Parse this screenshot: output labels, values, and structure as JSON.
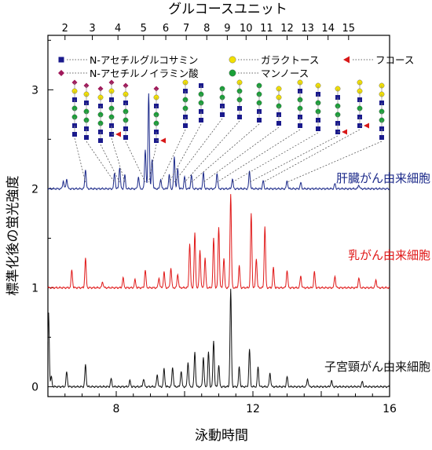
{
  "chart_data": {
    "type": "line",
    "title": "",
    "xlabel": "泳動時間",
    "ylabel": "標準化後の蛍光強度",
    "top_axis_label": "グルコースユニット",
    "xlim": [
      6,
      16
    ],
    "ylim": [
      -0.1,
      3.55
    ],
    "x_ticks": [
      "8",
      "12",
      "16"
    ],
    "y_ticks": [
      "0",
      "1",
      "2",
      "3"
    ],
    "top_ticks": [
      "2",
      "3",
      "4",
      "5",
      "6",
      "7",
      "8",
      "9",
      "10",
      "11",
      "12",
      "13",
      "14",
      "15"
    ],
    "top_tick_positions": [
      6.5,
      7.3,
      8.05,
      8.8,
      9.45,
      10.05,
      10.65,
      11.25,
      11.8,
      12.4,
      13.0,
      13.6,
      14.2,
      14.8
    ],
    "legend": [
      {
        "label": "N-アセチルグルコサミン",
        "symbol": "square",
        "color": "#1a1a8c"
      },
      {
        "label": "N-アセチルノイラミン酸",
        "symbol": "diamond",
        "color": "#a0185a"
      },
      {
        "label": "ガラクトース",
        "symbol": "circle",
        "color": "#f2e000"
      },
      {
        "label": "マンノース",
        "symbol": "circle",
        "color": "#1aa038"
      },
      {
        "label": "フコース",
        "symbol": "triangle",
        "color": "#d81818"
      }
    ],
    "series": [
      {
        "name": "肝臓がん由来細胞",
        "color": "#1c2a8a",
        "baseline": 2.0,
        "peaks": [
          [
            6.45,
            0.08
          ],
          [
            6.55,
            0.1
          ],
          [
            7.1,
            0.2
          ],
          [
            7.95,
            0.16
          ],
          [
            8.1,
            0.22
          ],
          [
            8.25,
            0.14
          ],
          [
            8.65,
            0.12
          ],
          [
            8.85,
            0.4
          ],
          [
            8.95,
            0.97
          ],
          [
            9.05,
            0.3
          ],
          [
            9.3,
            0.1
          ],
          [
            9.55,
            0.14
          ],
          [
            9.7,
            0.32
          ],
          [
            9.8,
            0.2
          ],
          [
            10.0,
            0.12
          ],
          [
            10.2,
            0.14
          ],
          [
            10.55,
            0.16
          ],
          [
            10.95,
            0.16
          ],
          [
            11.4,
            0.1
          ],
          [
            11.9,
            0.18
          ],
          [
            12.3,
            0.08
          ],
          [
            13.0,
            0.08
          ],
          [
            13.4,
            0.06
          ],
          [
            14.4,
            0.05
          ],
          [
            15.1,
            0.04
          ]
        ]
      },
      {
        "name": "乳がん由来細胞",
        "color": "#e01818",
        "baseline": 1.0,
        "peaks": [
          [
            6.7,
            0.18
          ],
          [
            7.1,
            0.3
          ],
          [
            7.6,
            0.06
          ],
          [
            8.2,
            0.1
          ],
          [
            8.55,
            0.08
          ],
          [
            8.85,
            0.18
          ],
          [
            9.25,
            0.1
          ],
          [
            9.4,
            0.16
          ],
          [
            9.6,
            0.2
          ],
          [
            9.8,
            0.14
          ],
          [
            10.15,
            0.45
          ],
          [
            10.3,
            0.55
          ],
          [
            10.45,
            0.38
          ],
          [
            10.6,
            0.3
          ],
          [
            10.85,
            0.5
          ],
          [
            11.0,
            0.62
          ],
          [
            11.15,
            0.3
          ],
          [
            11.35,
            0.95
          ],
          [
            11.6,
            0.22
          ],
          [
            11.95,
            0.75
          ],
          [
            12.1,
            0.3
          ],
          [
            12.35,
            0.62
          ],
          [
            12.6,
            0.2
          ],
          [
            13.0,
            0.18
          ],
          [
            13.4,
            0.12
          ],
          [
            13.8,
            0.16
          ],
          [
            14.4,
            0.12
          ],
          [
            15.1,
            0.1
          ],
          [
            15.6,
            0.08
          ]
        ]
      },
      {
        "name": "子宮頸がん由来細胞",
        "color": "#111111",
        "baseline": 0.0,
        "peaks": [
          [
            6.02,
            0.75
          ],
          [
            6.1,
            0.1
          ],
          [
            6.55,
            0.15
          ],
          [
            7.1,
            0.22
          ],
          [
            7.85,
            0.08
          ],
          [
            8.4,
            0.06
          ],
          [
            8.8,
            0.08
          ],
          [
            9.2,
            0.12
          ],
          [
            9.4,
            0.18
          ],
          [
            9.65,
            0.2
          ],
          [
            9.9,
            0.16
          ],
          [
            10.1,
            0.25
          ],
          [
            10.3,
            0.35
          ],
          [
            10.55,
            0.3
          ],
          [
            10.7,
            0.35
          ],
          [
            10.85,
            0.47
          ],
          [
            11.0,
            0.22
          ],
          [
            11.35,
            0.98
          ],
          [
            11.6,
            0.2
          ],
          [
            11.9,
            0.38
          ],
          [
            12.15,
            0.2
          ],
          [
            12.5,
            0.14
          ],
          [
            13.0,
            0.1
          ],
          [
            13.6,
            0.08
          ],
          [
            14.3,
            0.06
          ],
          [
            15.2,
            0.05
          ]
        ]
      }
    ]
  }
}
